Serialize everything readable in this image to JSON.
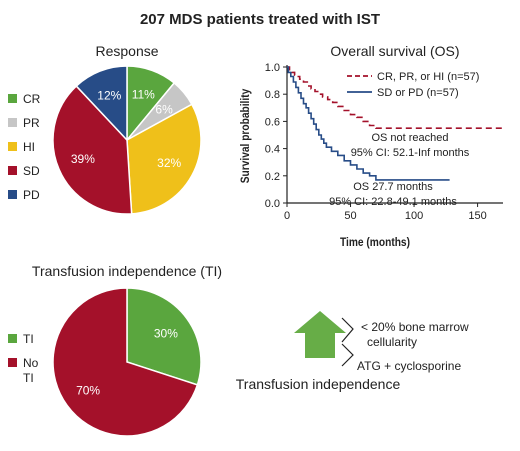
{
  "title": "207 MDS patients treated with IST",
  "chart_data": [
    {
      "type": "pie",
      "title": "Response",
      "slices": [
        {
          "label": "CR",
          "value": 11,
          "display": "11%",
          "color": "#5aa63e"
        },
        {
          "label": "PR",
          "value": 6,
          "display": "6%",
          "color": "#c6c6c6"
        },
        {
          "label": "HI",
          "value": 32,
          "display": "32%",
          "color": "#efc01a"
        },
        {
          "label": "SD",
          "value": 39,
          "display": "39%",
          "color": "#a4112a"
        },
        {
          "label": "PD",
          "value": 12,
          "display": "12%",
          "color": "#274c87"
        }
      ]
    },
    {
      "type": "line",
      "title": "Overall survival (OS)",
      "xlabel": "Time (months)",
      "ylabel": "Survival probability",
      "xlim": [
        0,
        170
      ],
      "ylim": [
        0,
        1.0
      ],
      "xticks": [
        "0",
        "50",
        "100",
        "150"
      ],
      "xtick_values": [
        0,
        50,
        100,
        150
      ],
      "yticks": [
        "0.0",
        "0.2",
        "0.4",
        "0.6",
        "0.8",
        "1.0"
      ],
      "ytick_values": [
        0.0,
        0.2,
        0.4,
        0.6,
        0.8,
        1.0
      ],
      "series": [
        {
          "name": "CR, PR, or HI (n=57)",
          "color": "#a4112a",
          "dashed": true,
          "points": [
            [
              0,
              1.0
            ],
            [
              2,
              0.98
            ],
            [
              4,
              0.96
            ],
            [
              6,
              0.94
            ],
            [
              8,
              0.93
            ],
            [
              10,
              0.91
            ],
            [
              13,
              0.89
            ],
            [
              16,
              0.86
            ],
            [
              19,
              0.84
            ],
            [
              22,
              0.82
            ],
            [
              25,
              0.8
            ],
            [
              28,
              0.78
            ],
            [
              32,
              0.76
            ],
            [
              36,
              0.74
            ],
            [
              40,
              0.71
            ],
            [
              45,
              0.68
            ],
            [
              50,
              0.65
            ],
            [
              55,
              0.63
            ],
            [
              60,
              0.6
            ],
            [
              65,
              0.57
            ],
            [
              70,
              0.55
            ],
            [
              170,
              0.55
            ]
          ]
        },
        {
          "name": "SD or PD (n=57)",
          "color": "#274c87",
          "dashed": false,
          "points": [
            [
              0,
              1.0
            ],
            [
              1,
              0.96
            ],
            [
              3,
              0.93
            ],
            [
              5,
              0.89
            ],
            [
              7,
              0.85
            ],
            [
              9,
              0.81
            ],
            [
              11,
              0.77
            ],
            [
              13,
              0.73
            ],
            [
              15,
              0.7
            ],
            [
              17,
              0.66
            ],
            [
              19,
              0.62
            ],
            [
              21,
              0.58
            ],
            [
              23,
              0.54
            ],
            [
              25,
              0.5
            ],
            [
              27,
              0.47
            ],
            [
              29,
              0.44
            ],
            [
              31,
              0.41
            ],
            [
              35,
              0.38
            ],
            [
              40,
              0.35
            ],
            [
              45,
              0.31
            ],
            [
              50,
              0.28
            ],
            [
              55,
              0.25
            ],
            [
              60,
              0.22
            ],
            [
              65,
              0.2
            ],
            [
              70,
              0.17
            ],
            [
              128,
              0.17
            ]
          ]
        }
      ],
      "annotations": [
        {
          "text": "OS not reached",
          "color": "#a4112a"
        },
        {
          "text": "95% CI: 52.1-Inf months",
          "color": "#a4112a"
        },
        {
          "text": "OS 27.7 months",
          "color": "#222222"
        },
        {
          "text": "95% CI: 22.8-49.1 months",
          "color": "#222222"
        }
      ]
    },
    {
      "type": "pie",
      "title": "Transfusion independence (TI)",
      "slices": [
        {
          "label": "TI",
          "value": 30,
          "display": "30%",
          "color": "#5aa63e"
        },
        {
          "label": "No TI",
          "label_lines": [
            "No",
            "TI"
          ],
          "value": 70,
          "display": "70%",
          "color": "#a4112a"
        }
      ]
    }
  ],
  "factors": {
    "items": [
      "< 20% bone marrow",
      "cellularity",
      "ATG + cyclosporine"
    ],
    "caption": "Transfusion independence",
    "arrow_color": "#67ad47"
  }
}
